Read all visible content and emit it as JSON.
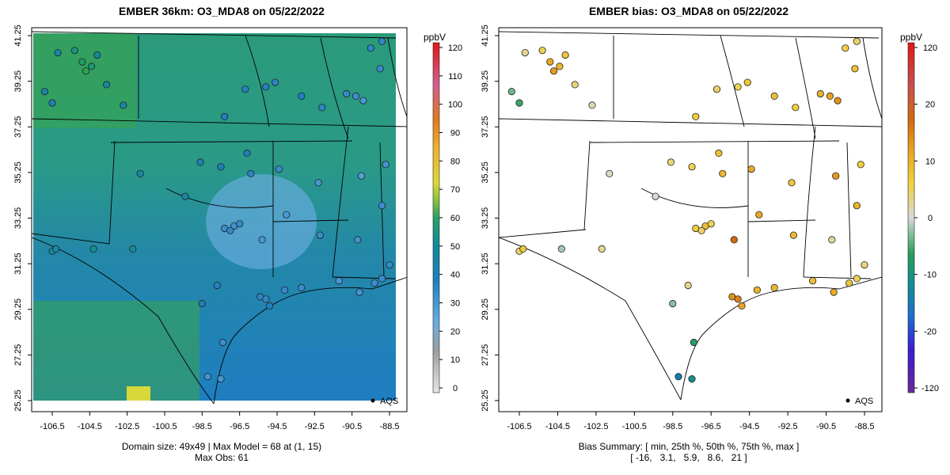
{
  "left_panel": {
    "title": "EMBER 36km: O3_MDA8 on 05/22/2022",
    "footer_line1": "Domain size: 49x49 | Max Model = 68 at (1, 15)",
    "footer_line2": "Max Obs: 61",
    "legend_label": "AQS",
    "colorbar": {
      "unit": "ppbV",
      "ticks": [
        "120",
        "110",
        "100",
        "90",
        "80",
        "70",
        "60",
        "50",
        "40",
        "30",
        "20",
        "10",
        "0"
      ]
    }
  },
  "right_panel": {
    "title": "EMBER bias: O3_MDA8 on 05/22/2022",
    "footer_line1": "Bias Summary: [ min, 25th %, 50th %, 75th %, max ]",
    "footer_line2": "[ -16,   3.1,   5.9,   8.6,   21 ]",
    "legend_label": "AQS",
    "colorbar": {
      "unit": "ppbV",
      "ticks": [
        "120",
        "20",
        "10",
        "0",
        "-10",
        "-20",
        "-120"
      ]
    }
  },
  "axes": {
    "x_ticks": [
      "-106.5",
      "-104.5",
      "-102.5",
      "-100.5",
      "-98.5",
      "-96.5",
      "-94.5",
      "-92.5",
      "-90.5",
      "-88.5"
    ],
    "y_ticks": [
      "41.25",
      "39.25",
      "37.25",
      "35.25",
      "33.25",
      "31.25",
      "29.25",
      "27.25",
      "25.25"
    ]
  },
  "colors": {
    "model_scale": [
      "#d9d9d9",
      "#bfbfbf",
      "#9e9e9e",
      "#6aaee0",
      "#3b8fd0",
      "#1f7fbf",
      "#138a9a",
      "#1a9a6a",
      "#3aa64a",
      "#8cc040",
      "#d8d83a",
      "#f2c230",
      "#ee8a20",
      "#e06020",
      "#d06090",
      "#e03020"
    ],
    "bias_scale": [
      "#6a2a9a",
      "#3b1bd0",
      "#1f5fd0",
      "#138a9a",
      "#2aa05a",
      "#d9d9d9",
      "#f0d040",
      "#e8a020",
      "#d06a10",
      "#c85050",
      "#e01818"
    ],
    "map_field_south": "#1e7ec0",
    "map_field_north": "#2a9a7a"
  },
  "chart_data": {
    "type": "map",
    "left": {
      "variable": "O3_MDA8",
      "date": "05/22/2022",
      "unit": "ppbV",
      "domain_size": "49x49",
      "max_model": 68,
      "max_model_location": "(1, 15)",
      "max_obs": 61,
      "xlim": [
        -107.3,
        -88.2
      ],
      "ylim": [
        25.25,
        41.25
      ],
      "colorbar_range": [
        0,
        120
      ],
      "stations": [
        {
          "lon": -106.2,
          "lat": 40.5,
          "v": 46
        },
        {
          "lon": -105.3,
          "lat": 40.6,
          "v": 52
        },
        {
          "lon": -104.9,
          "lat": 40.1,
          "v": 58
        },
        {
          "lon": -104.7,
          "lat": 39.7,
          "v": 61
        },
        {
          "lon": -104.4,
          "lat": 39.9,
          "v": 55
        },
        {
          "lon": -104.1,
          "lat": 40.4,
          "v": 48
        },
        {
          "lon": -106.9,
          "lat": 38.8,
          "v": 44
        },
        {
          "lon": -106.5,
          "lat": 38.3,
          "v": 42
        },
        {
          "lon": -103.6,
          "lat": 39.1,
          "v": 47
        },
        {
          "lon": -102.7,
          "lat": 38.2,
          "v": 44
        },
        {
          "lon": -97.3,
          "lat": 37.7,
          "v": 40
        },
        {
          "lon": -96.2,
          "lat": 38.9,
          "v": 38
        },
        {
          "lon": -95.1,
          "lat": 39.0,
          "v": 39
        },
        {
          "lon": -94.6,
          "lat": 39.2,
          "v": 37
        },
        {
          "lon": -93.2,
          "lat": 38.6,
          "v": 39
        },
        {
          "lon": -92.1,
          "lat": 38.1,
          "v": 36
        },
        {
          "lon": -90.8,
          "lat": 38.7,
          "v": 34
        },
        {
          "lon": -90.3,
          "lat": 38.6,
          "v": 32
        },
        {
          "lon": -89.9,
          "lat": 38.4,
          "v": 30
        },
        {
          "lon": -89.0,
          "lat": 39.8,
          "v": 34
        },
        {
          "lon": -89.5,
          "lat": 40.7,
          "v": 36
        },
        {
          "lon": -88.9,
          "lat": 41.0,
          "v": 35
        },
        {
          "lon": -96.1,
          "lat": 36.1,
          "v": 40
        },
        {
          "lon": -97.5,
          "lat": 35.5,
          "v": 42
        },
        {
          "lon": -98.6,
          "lat": 35.7,
          "v": 43
        },
        {
          "lon": -95.9,
          "lat": 35.2,
          "v": 37
        },
        {
          "lon": -94.4,
          "lat": 35.4,
          "v": 33
        },
        {
          "lon": -92.3,
          "lat": 34.8,
          "v": 30
        },
        {
          "lon": -90.0,
          "lat": 35.1,
          "v": 28
        },
        {
          "lon": -88.7,
          "lat": 35.6,
          "v": 31
        },
        {
          "lon": -106.5,
          "lat": 31.8,
          "v": 48
        },
        {
          "lon": -106.3,
          "lat": 31.9,
          "v": 45
        },
        {
          "lon": -104.3,
          "lat": 31.9,
          "v": 50
        },
        {
          "lon": -102.2,
          "lat": 31.9,
          "v": 49
        },
        {
          "lon": -101.8,
          "lat": 35.2,
          "v": 46
        },
        {
          "lon": -99.4,
          "lat": 34.2,
          "v": 44
        },
        {
          "lon": -97.3,
          "lat": 32.8,
          "v": 33
        },
        {
          "lon": -96.8,
          "lat": 32.9,
          "v": 31
        },
        {
          "lon": -97.0,
          "lat": 32.7,
          "v": 35
        },
        {
          "lon": -96.5,
          "lat": 33.0,
          "v": 34
        },
        {
          "lon": -97.7,
          "lat": 30.3,
          "v": 38
        },
        {
          "lon": -98.5,
          "lat": 29.5,
          "v": 41
        },
        {
          "lon": -95.4,
          "lat": 29.8,
          "v": 37
        },
        {
          "lon": -95.1,
          "lat": 29.7,
          "v": 35
        },
        {
          "lon": -94.9,
          "lat": 29.4,
          "v": 39
        },
        {
          "lon": -94.1,
          "lat": 30.1,
          "v": 34
        },
        {
          "lon": -93.2,
          "lat": 30.2,
          "v": 33
        },
        {
          "lon": -91.2,
          "lat": 30.5,
          "v": 30
        },
        {
          "lon": -90.1,
          "lat": 30.0,
          "v": 31
        },
        {
          "lon": -89.3,
          "lat": 30.4,
          "v": 32
        },
        {
          "lon": -88.9,
          "lat": 30.6,
          "v": 33
        },
        {
          "lon": -88.5,
          "lat": 31.2,
          "v": 34
        },
        {
          "lon": -97.4,
          "lat": 27.8,
          "v": 32
        },
        {
          "lon": -97.5,
          "lat": 26.2,
          "v": 30
        },
        {
          "lon": -98.2,
          "lat": 26.3,
          "v": 31
        },
        {
          "lon": -92.2,
          "lat": 32.5,
          "v": 33
        },
        {
          "lon": -90.2,
          "lat": 32.3,
          "v": 31
        },
        {
          "lon": -88.9,
          "lat": 33.8,
          "v": 32
        },
        {
          "lon": -95.3,
          "lat": 32.3,
          "v": 30
        },
        {
          "lon": -94.0,
          "lat": 33.4,
          "v": 29
        }
      ]
    },
    "right": {
      "variable": "O3_MDA8 bias",
      "date": "05/22/2022",
      "unit": "ppbV",
      "xlim": [
        -107.3,
        -88.2
      ],
      "ylim": [
        25.25,
        41.25
      ],
      "colorbar_range": [
        -120,
        120
      ],
      "summary": {
        "min": -16,
        "p25": 3.1,
        "p50": 5.9,
        "p75": 8.6,
        "max": 21
      },
      "stations": [
        {
          "lon": -106.2,
          "lat": 40.5,
          "v": 3
        },
        {
          "lon": -105.3,
          "lat": 40.6,
          "v": 6
        },
        {
          "lon": -104.9,
          "lat": 40.1,
          "v": 12
        },
        {
          "lon": -104.7,
          "lat": 39.7,
          "v": 14
        },
        {
          "lon": -104.4,
          "lat": 39.9,
          "v": 10
        },
        {
          "lon": -104.1,
          "lat": 40.4,
          "v": 8
        },
        {
          "lon": -106.9,
          "lat": 38.8,
          "v": -4
        },
        {
          "lon": -106.5,
          "lat": 38.3,
          "v": -6
        },
        {
          "lon": -103.6,
          "lat": 39.1,
          "v": 4
        },
        {
          "lon": -102.7,
          "lat": 38.2,
          "v": 2
        },
        {
          "lon": -97.3,
          "lat": 37.7,
          "v": 7
        },
        {
          "lon": -96.2,
          "lat": 38.9,
          "v": 5
        },
        {
          "lon": -95.1,
          "lat": 39.0,
          "v": 6
        },
        {
          "lon": -94.6,
          "lat": 39.2,
          "v": 8
        },
        {
          "lon": -93.2,
          "lat": 38.6,
          "v": 9
        },
        {
          "lon": -92.1,
          "lat": 38.1,
          "v": 7
        },
        {
          "lon": -90.8,
          "lat": 38.7,
          "v": 11
        },
        {
          "lon": -90.3,
          "lat": 38.6,
          "v": 13
        },
        {
          "lon": -89.9,
          "lat": 38.4,
          "v": 15
        },
        {
          "lon": -89.0,
          "lat": 39.8,
          "v": 9
        },
        {
          "lon": -89.5,
          "lat": 40.7,
          "v": 6
        },
        {
          "lon": -88.9,
          "lat": 41.0,
          "v": 5
        },
        {
          "lon": -96.1,
          "lat": 36.1,
          "v": 9
        },
        {
          "lon": -97.5,
          "lat": 35.5,
          "v": 6
        },
        {
          "lon": -98.6,
          "lat": 35.7,
          "v": 4
        },
        {
          "lon": -95.9,
          "lat": 35.2,
          "v": 10
        },
        {
          "lon": -94.4,
          "lat": 35.4,
          "v": 12
        },
        {
          "lon": -92.3,
          "lat": 34.8,
          "v": 8
        },
        {
          "lon": -90.0,
          "lat": 35.1,
          "v": 14
        },
        {
          "lon": -88.7,
          "lat": 35.6,
          "v": 7
        },
        {
          "lon": -106.5,
          "lat": 31.8,
          "v": 5
        },
        {
          "lon": -106.3,
          "lat": 31.9,
          "v": 8
        },
        {
          "lon": -104.3,
          "lat": 31.9,
          "v": -2
        },
        {
          "lon": -102.2,
          "lat": 31.9,
          "v": 3
        },
        {
          "lon": -101.8,
          "lat": 35.2,
          "v": 1
        },
        {
          "lon": -99.4,
          "lat": 34.2,
          "v": 0
        },
        {
          "lon": -97.3,
          "lat": 32.8,
          "v": 7
        },
        {
          "lon": -96.8,
          "lat": 32.9,
          "v": 9
        },
        {
          "lon": -97.0,
          "lat": 32.7,
          "v": 5
        },
        {
          "lon": -96.5,
          "lat": 33.0,
          "v": 6
        },
        {
          "lon": -97.7,
          "lat": 30.3,
          "v": 3
        },
        {
          "lon": -98.5,
          "lat": 29.5,
          "v": -3
        },
        {
          "lon": -95.4,
          "lat": 29.8,
          "v": 15
        },
        {
          "lon": -95.1,
          "lat": 29.7,
          "v": 17
        },
        {
          "lon": -94.9,
          "lat": 29.4,
          "v": 13
        },
        {
          "lon": -94.1,
          "lat": 30.1,
          "v": 11
        },
        {
          "lon": -93.2,
          "lat": 30.2,
          "v": 10
        },
        {
          "lon": -91.2,
          "lat": 30.5,
          "v": 9
        },
        {
          "lon": -90.1,
          "lat": 30.0,
          "v": 12
        },
        {
          "lon": -89.3,
          "lat": 30.4,
          "v": 8
        },
        {
          "lon": -88.9,
          "lat": 30.6,
          "v": 6
        },
        {
          "lon": -88.5,
          "lat": 31.2,
          "v": 4
        },
        {
          "lon": -97.4,
          "lat": 27.8,
          "v": -8
        },
        {
          "lon": -97.5,
          "lat": 26.2,
          "v": -12
        },
        {
          "lon": -98.2,
          "lat": 26.3,
          "v": -16
        },
        {
          "lon": -92.2,
          "lat": 32.5,
          "v": 10
        },
        {
          "lon": -90.2,
          "lat": 32.3,
          "v": 3
        },
        {
          "lon": -88.9,
          "lat": 33.8,
          "v": 11
        },
        {
          "lon": -95.3,
          "lat": 32.3,
          "v": 21
        },
        {
          "lon": -94.0,
          "lat": 33.4,
          "v": 12
        }
      ]
    }
  }
}
